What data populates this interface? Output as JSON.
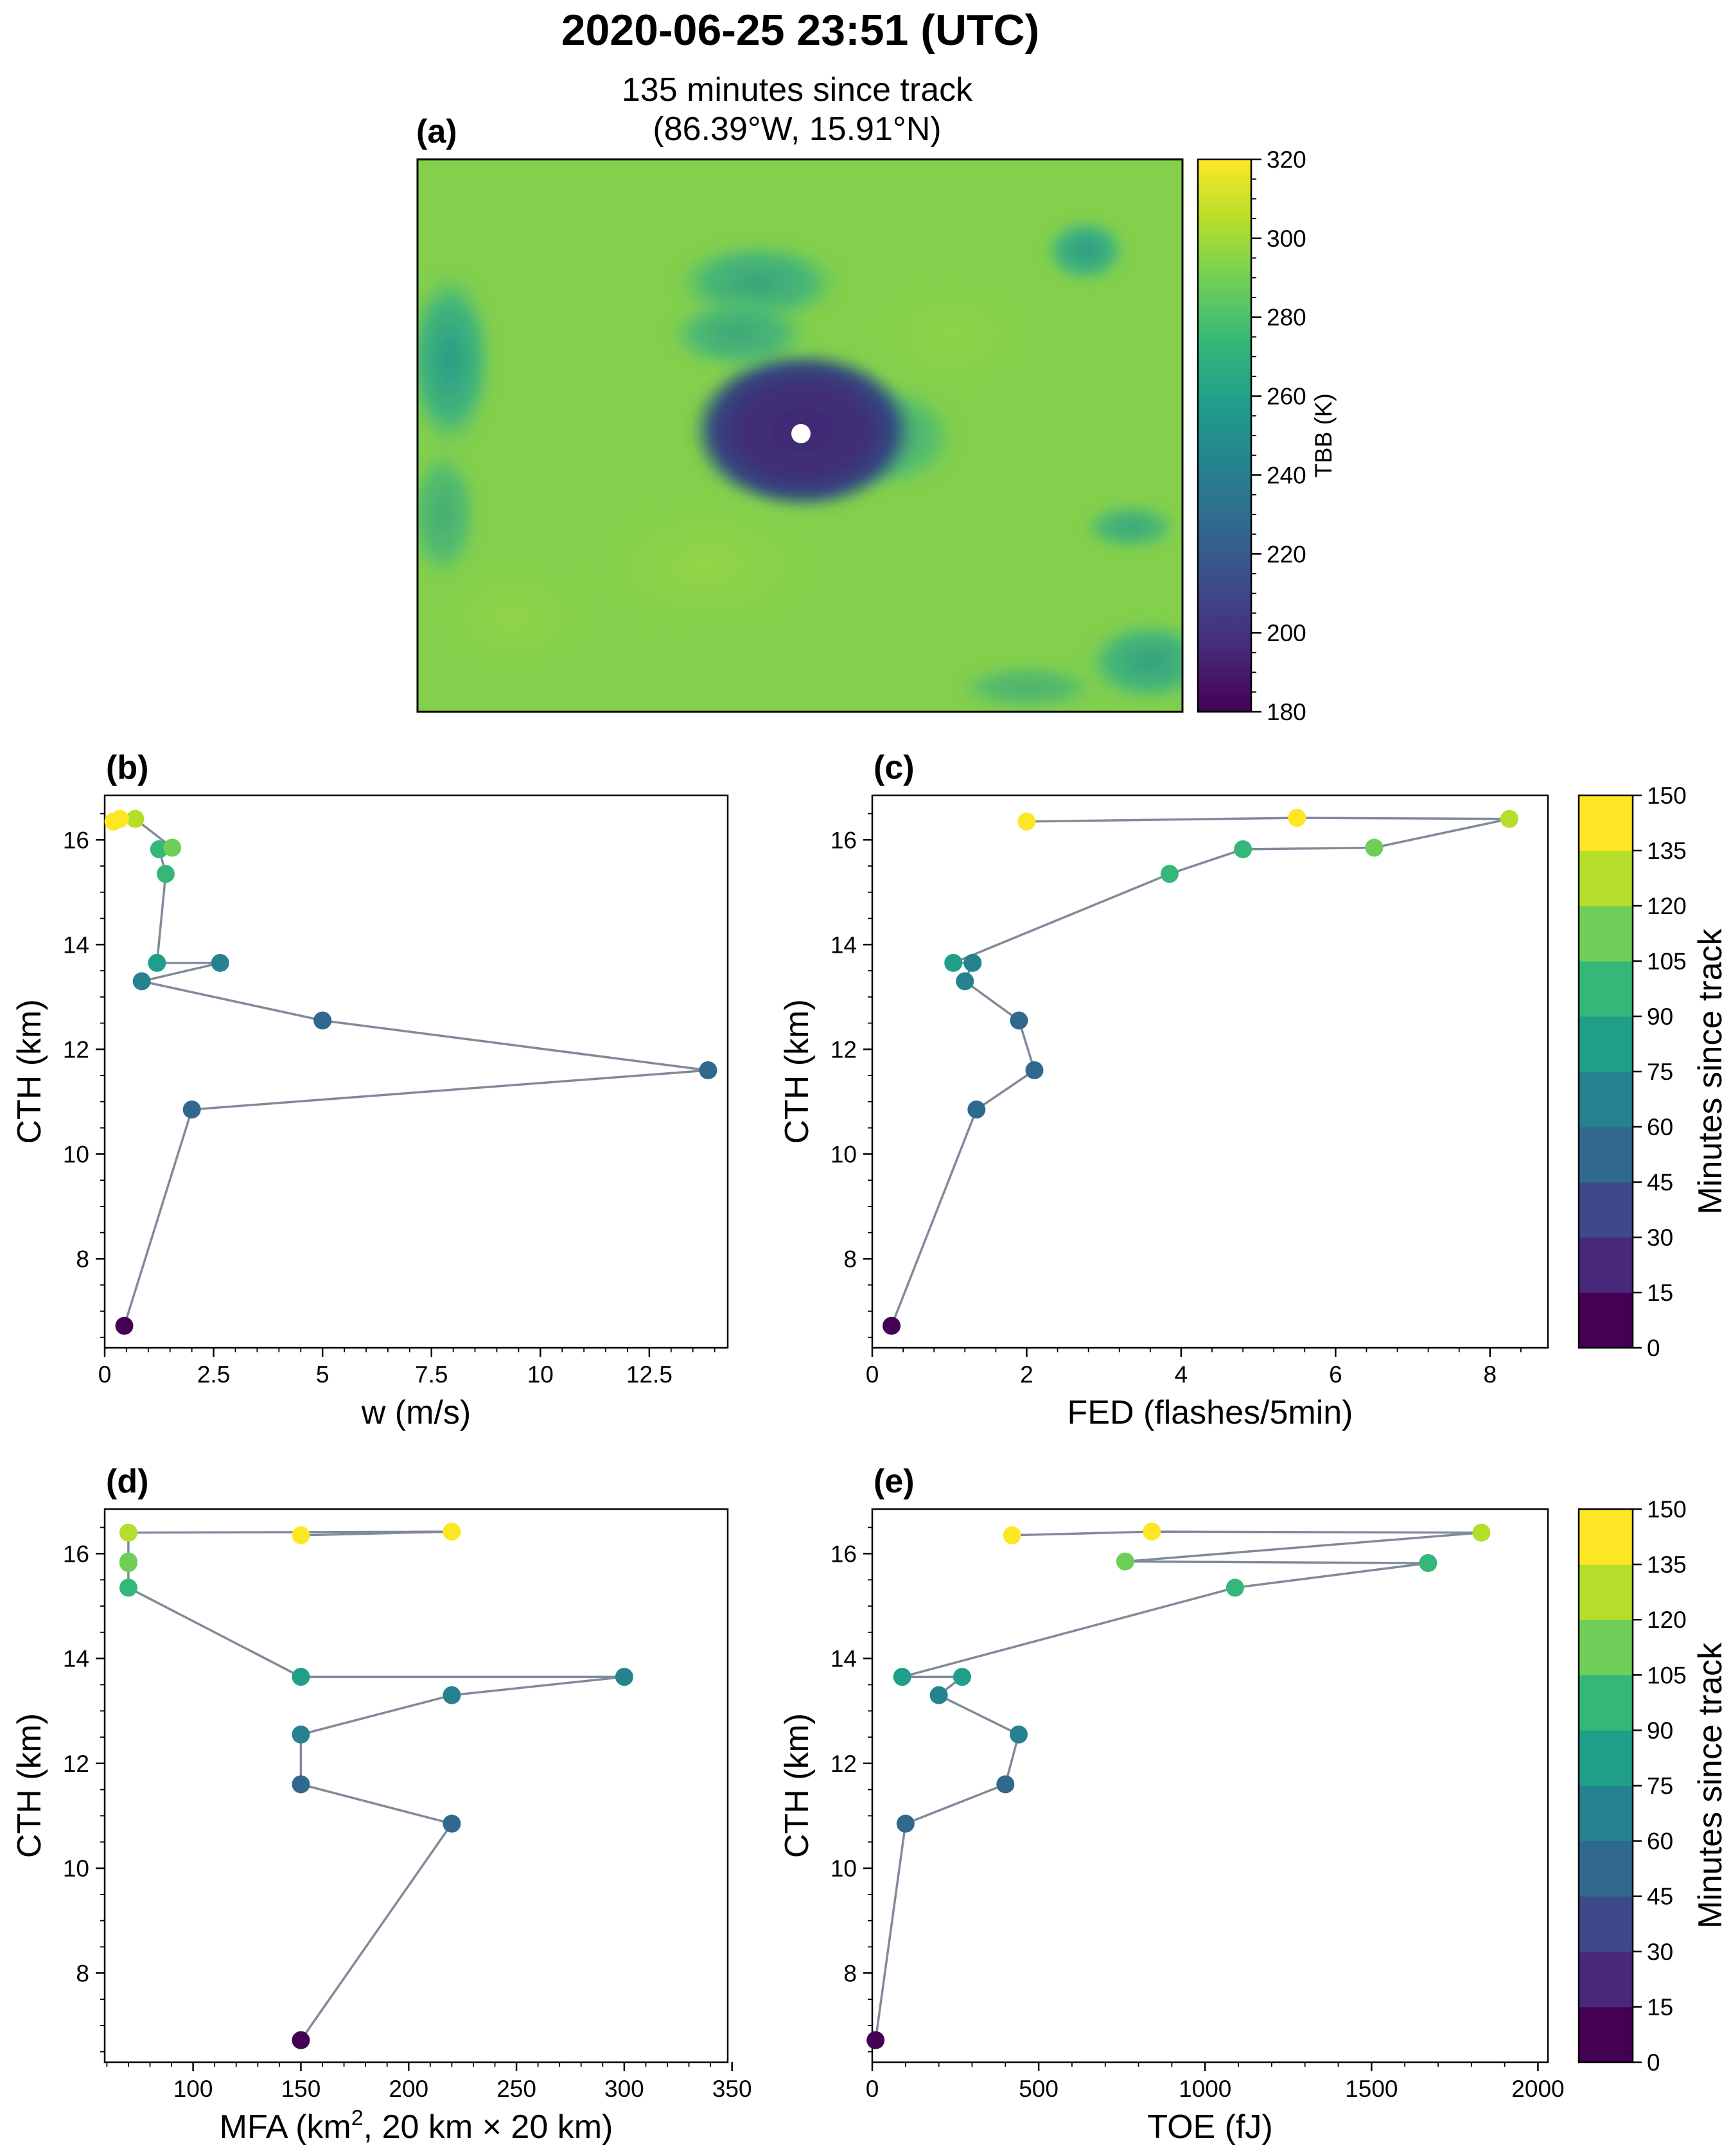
{
  "suptitle": "2020-06-25 23:51 (UTC)",
  "panel_a": {
    "label": "(a)",
    "title_line1": "135 minutes since track",
    "title_line2": "(86.39°W, 15.91°N)",
    "colorbar_label": "TBB (K)",
    "colorbar_ticks": [
      "180",
      "200",
      "220",
      "240",
      "260",
      "280",
      "300",
      "320"
    ]
  },
  "time_colorbar": {
    "label": "Minutes since track",
    "ticks": [
      "0",
      "15",
      "30",
      "45",
      "60",
      "75",
      "90",
      "105",
      "120",
      "135",
      "150"
    ]
  },
  "colors": {
    "line": "#808a99",
    "viridis": [
      "#440154",
      "#482878",
      "#3e4989",
      "#31688e",
      "#26828e",
      "#1f9e89",
      "#35b779",
      "#6ece58",
      "#b5de2b",
      "#fde725"
    ]
  },
  "chart_data": [
    {
      "type": "image",
      "panel": "a",
      "title": "135 minutes since track (86.39°W, 15.91°N)",
      "colorbar": {
        "label": "TBB (K)",
        "range": [
          180,
          320
        ],
        "colormap": "viridis"
      },
      "marker": {
        "lon": -86.39,
        "lat": 15.91
      }
    },
    {
      "type": "line",
      "panel": "b",
      "xlabel": "w (m/s)",
      "ylabel": "CTH (km)",
      "xlim": [
        0,
        14.3
      ],
      "ylim": [
        6.3,
        16.85
      ],
      "xticks": [
        "0",
        "2.5",
        "5",
        "7.5",
        "10",
        "12.5"
      ],
      "xtick_values": [
        0,
        2.5,
        5,
        7.5,
        10,
        12.5
      ],
      "yticks": [
        "8",
        "10",
        "12",
        "14",
        "16"
      ],
      "ytick_values": [
        8,
        10,
        12,
        14,
        16
      ],
      "points": [
        {
          "t": 0,
          "x": 0.45,
          "y": 6.72
        },
        {
          "t": 45,
          "x": 2.0,
          "y": 10.85
        },
        {
          "t": 50,
          "x": 13.85,
          "y": 11.6
        },
        {
          "t": 55,
          "x": 5.0,
          "y": 12.55
        },
        {
          "t": 60,
          "x": 0.85,
          "y": 13.3
        },
        {
          "t": 70,
          "x": 2.65,
          "y": 13.65
        },
        {
          "t": 80,
          "x": 1.2,
          "y": 13.65
        },
        {
          "t": 95,
          "x": 1.4,
          "y": 15.35
        },
        {
          "t": 100,
          "x": 1.25,
          "y": 15.82
        },
        {
          "t": 110,
          "x": 1.55,
          "y": 15.85
        },
        {
          "t": 130,
          "x": 0.7,
          "y": 16.4
        },
        {
          "t": 140,
          "x": 0.35,
          "y": 16.4
        },
        {
          "t": 150,
          "x": 0.2,
          "y": 16.35
        }
      ]
    },
    {
      "type": "line",
      "panel": "c",
      "xlabel": "FED (flashes/5min)",
      "ylabel": "CTH (km)",
      "xlim": [
        0,
        8.75
      ],
      "ylim": [
        6.3,
        16.85
      ],
      "xticks": [
        "0",
        "2",
        "4",
        "6",
        "8"
      ],
      "xtick_values": [
        0,
        2,
        4,
        6,
        8
      ],
      "yticks": [
        "8",
        "10",
        "12",
        "14",
        "16"
      ],
      "ytick_values": [
        8,
        10,
        12,
        14,
        16
      ],
      "points": [
        {
          "t": 0,
          "x": 0.25,
          "y": 6.72
        },
        {
          "t": 45,
          "x": 1.35,
          "y": 10.85
        },
        {
          "t": 50,
          "x": 2.1,
          "y": 11.6
        },
        {
          "t": 55,
          "x": 1.9,
          "y": 12.55
        },
        {
          "t": 60,
          "x": 1.2,
          "y": 13.3
        },
        {
          "t": 70,
          "x": 1.3,
          "y": 13.65
        },
        {
          "t": 80,
          "x": 1.05,
          "y": 13.65
        },
        {
          "t": 90,
          "x": 3.85,
          "y": 15.35
        },
        {
          "t": 100,
          "x": 4.8,
          "y": 15.82
        },
        {
          "t": 110,
          "x": 6.5,
          "y": 15.85
        },
        {
          "t": 130,
          "x": 8.25,
          "y": 16.4
        },
        {
          "t": 140,
          "x": 5.5,
          "y": 16.42
        },
        {
          "t": 150,
          "x": 2.0,
          "y": 16.35
        }
      ]
    },
    {
      "type": "line",
      "panel": "d",
      "xlabel_parts": [
        "MFA (km",
        "2",
        ", 20 km × 20 km)"
      ],
      "ylabel": "CTH (km)",
      "xlim": [
        59,
        348
      ],
      "ylim": [
        6.3,
        16.85
      ],
      "xticks": [
        "100",
        "150",
        "200",
        "250",
        "300",
        "350"
      ],
      "xtick_values": [
        100,
        150,
        200,
        250,
        300,
        350
      ],
      "yticks": [
        "8",
        "10",
        "12",
        "14",
        "16"
      ],
      "ytick_values": [
        8,
        10,
        12,
        14,
        16
      ],
      "points": [
        {
          "t": 0,
          "x": 150,
          "y": 6.72
        },
        {
          "t": 45,
          "x": 220,
          "y": 10.85
        },
        {
          "t": 55,
          "x": 150,
          "y": 11.6
        },
        {
          "t": 60,
          "x": 150,
          "y": 12.55
        },
        {
          "t": 65,
          "x": 220,
          "y": 13.3
        },
        {
          "t": 70,
          "x": 300,
          "y": 13.65
        },
        {
          "t": 80,
          "x": 150,
          "y": 13.65
        },
        {
          "t": 100,
          "x": 70,
          "y": 15.35
        },
        {
          "t": 110,
          "x": 70,
          "y": 15.82
        },
        {
          "t": 115,
          "x": 70,
          "y": 15.85
        },
        {
          "t": 130,
          "x": 70,
          "y": 16.4
        },
        {
          "t": 145,
          "x": 220,
          "y": 16.42
        },
        {
          "t": 150,
          "x": 150,
          "y": 16.35
        }
      ]
    },
    {
      "type": "line",
      "panel": "e",
      "xlabel": "TOE (fJ)",
      "ylabel": "CTH (km)",
      "xlim": [
        0,
        2030
      ],
      "ylim": [
        6.3,
        16.85
      ],
      "xticks": [
        "0",
        "500",
        "1000",
        "1500",
        "2000"
      ],
      "xtick_values": [
        0,
        500,
        1000,
        1500,
        2000
      ],
      "yticks": [
        "8",
        "10",
        "12",
        "14",
        "16"
      ],
      "ytick_values": [
        8,
        10,
        12,
        14,
        16
      ],
      "points": [
        {
          "t": 0,
          "x": 10,
          "y": 6.72
        },
        {
          "t": 45,
          "x": 100,
          "y": 10.85
        },
        {
          "t": 55,
          "x": 400,
          "y": 11.6
        },
        {
          "t": 60,
          "x": 440,
          "y": 12.55
        },
        {
          "t": 65,
          "x": 200,
          "y": 13.3
        },
        {
          "t": 80,
          "x": 270,
          "y": 13.65
        },
        {
          "t": 85,
          "x": 90,
          "y": 13.65
        },
        {
          "t": 95,
          "x": 1090,
          "y": 15.35
        },
        {
          "t": 100,
          "x": 1670,
          "y": 15.82
        },
        {
          "t": 110,
          "x": 760,
          "y": 15.85
        },
        {
          "t": 130,
          "x": 1830,
          "y": 16.4
        },
        {
          "t": 145,
          "x": 840,
          "y": 16.42
        },
        {
          "t": 150,
          "x": 420,
          "y": 16.35
        }
      ]
    }
  ]
}
